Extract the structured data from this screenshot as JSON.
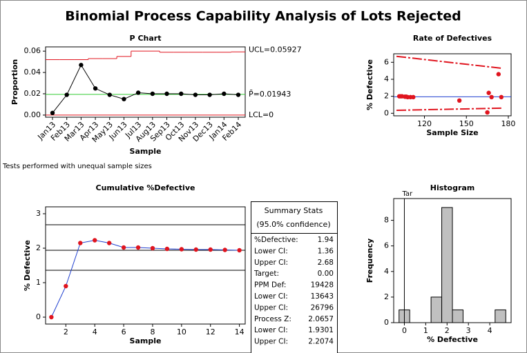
{
  "title": "Binomial Process Capability Analysis of Lots Rejected",
  "note": "Tests performed with unequal sample sizes",
  "chart_data": [
    {
      "type": "line",
      "title": "P Chart",
      "x_label": "Sample",
      "y_label": "Proportion",
      "categories": [
        "Jan13",
        "Feb13",
        "Mar13",
        "Apr13",
        "May13",
        "Jun13",
        "Jul13",
        "Aug13",
        "Sep13",
        "Oct13",
        "Nov13",
        "Dec13",
        "Jan14",
        "Feb14"
      ],
      "values": [
        0.002,
        0.019,
        0.047,
        0.025,
        0.019,
        0.015,
        0.021,
        0.02,
        0.02,
        0.02,
        0.019,
        0.019,
        0.02,
        0.019
      ],
      "line_color": "#000000",
      "marker_color": "#000000",
      "ucl": [
        0.052,
        0.052,
        0.052,
        0.053,
        0.053,
        0.055,
        0.06,
        0.06,
        0.059,
        0.059,
        0.059,
        0.059,
        0.059,
        0.05927
      ],
      "center": 0.01943,
      "lcl": 0,
      "limit_labels": {
        "ucl": "UCL=0.05927",
        "center": "P̄=0.01943",
        "lcl": "LCL=0"
      },
      "limit_color": "#e0141e",
      "center_color": "#33cc33",
      "ylim": [
        -0.002,
        0.064
      ],
      "yticks": [
        {
          "value": 0,
          "label": "0.00"
        },
        {
          "value": 0.02,
          "label": "0.02"
        },
        {
          "value": 0.04,
          "label": "0.04"
        },
        {
          "value": 0.06,
          "label": "0.06"
        }
      ]
    },
    {
      "type": "scatter",
      "title": "Rate of Defectives",
      "x_label": "Sample Size",
      "y_label": "% Defective",
      "x": [
        102,
        103,
        104,
        106,
        107,
        108,
        110,
        112,
        145,
        165,
        166,
        168,
        173,
        175
      ],
      "values": [
        2.0,
        2.0,
        2.0,
        1.95,
        1.95,
        1.9,
        1.9,
        1.9,
        1.5,
        0.1,
        2.4,
        1.9,
        4.6,
        1.9
      ],
      "marker_color": "#e0141e",
      "center": 1.94,
      "center_color": "#1f3fcf",
      "upper_limit": {
        "x": [
          100,
          175
        ],
        "values": [
          6.7,
          5.3
        ]
      },
      "lower_limit": {
        "x": [
          100,
          175
        ],
        "values": [
          0.35,
          0.6
        ]
      },
      "limit_color": "#e0141e",
      "xlim": [
        98,
        182
      ],
      "xticks": [
        120,
        150,
        180
      ],
      "ylim": [
        -0.3,
        7
      ],
      "yticks": [
        0,
        2,
        4,
        6
      ]
    },
    {
      "type": "line",
      "title": "Cumulative %Defective",
      "x_label": "Sample",
      "y_label": "% Defective",
      "x": [
        1,
        2,
        3,
        4,
        5,
        6,
        7,
        8,
        9,
        10,
        11,
        12,
        13,
        14
      ],
      "values": [
        0.0,
        0.9,
        2.15,
        2.23,
        2.15,
        2.02,
        2.02,
        2.0,
        1.98,
        1.97,
        1.96,
        1.96,
        1.95,
        1.94
      ],
      "line_color": "#1f3fcf",
      "marker_color": "#e0141e",
      "reference_lines": [
        2.68,
        1.94,
        1.36
      ],
      "xlim": [
        0.6,
        14.4
      ],
      "xticks": [
        2,
        4,
        6,
        8,
        10,
        12,
        14
      ],
      "ylim": [
        -0.2,
        3.2
      ],
      "yticks": [
        0,
        1,
        2,
        3
      ]
    },
    {
      "type": "histogram",
      "title": "Histogram",
      "x_label": "% Defective",
      "y_label": "Frequency",
      "bins": [
        -0.25,
        0.25,
        0.75,
        1.25,
        1.75,
        2.25,
        2.75,
        3.25,
        3.75,
        4.25,
        4.75
      ],
      "counts": [
        1,
        0,
        0,
        2,
        9,
        1,
        0,
        0,
        0,
        1
      ],
      "color": "#c0c0c0",
      "target": 0,
      "target_label": "Tar",
      "xlim": [
        -0.5,
        5
      ],
      "xticks": [
        0,
        1,
        2,
        3,
        4
      ],
      "ylim": [
        0,
        9.7
      ],
      "yticks": [
        0,
        2,
        4,
        6,
        8
      ]
    }
  ],
  "summary": {
    "title": "Summary Stats",
    "subtitle": "(95.0% confidence)",
    "rows": [
      [
        "%Defective:",
        "1.94"
      ],
      [
        "Lower CI:",
        "1.36"
      ],
      [
        "Upper CI:",
        "2.68"
      ],
      [
        "Target:",
        "0.00"
      ],
      [
        "PPM Def:",
        "19428"
      ],
      [
        "Lower CI:",
        "13643"
      ],
      [
        "Upper CI:",
        "26796"
      ],
      [
        "Process Z:",
        "2.0657"
      ],
      [
        "Lower CI:",
        "1.9301"
      ],
      [
        "Upper CI:",
        "2.2074"
      ]
    ]
  }
}
